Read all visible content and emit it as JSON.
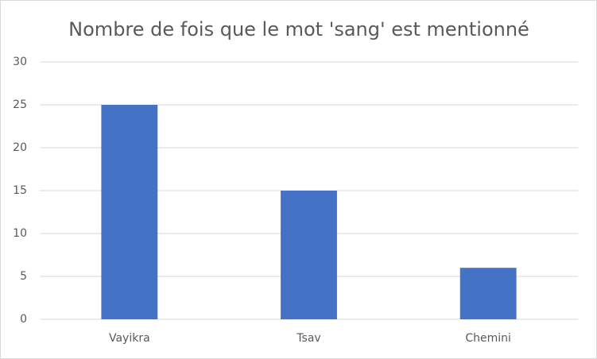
{
  "chart_data": {
    "type": "bar",
    "title": "Nombre de fois que le mot 'sang' est mentionné",
    "categories": [
      "Vayikra",
      "Tsav",
      "Chemini"
    ],
    "values": [
      25,
      15,
      6
    ],
    "color": "#4472c4",
    "ylim": [
      0,
      30
    ],
    "yticks": [
      0,
      5,
      10,
      15,
      20,
      25,
      30
    ],
    "grid": true
  }
}
